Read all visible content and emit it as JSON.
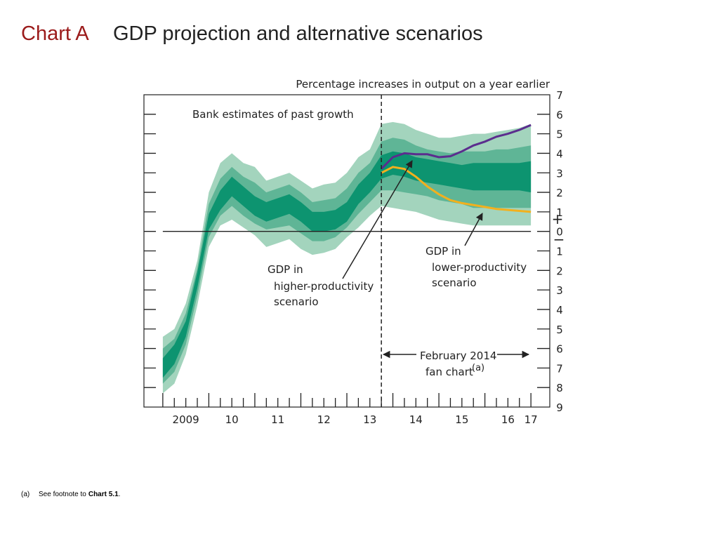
{
  "title_label": "Chart A",
  "title": "GDP projection and alternative scenarios",
  "chart_data": {
    "type": "fan",
    "unit_label": "Percentage increases in output on a year earlier",
    "x": [
      2009.0,
      2009.25,
      2009.5,
      2009.75,
      2010.0,
      2010.25,
      2010.5,
      2010.75,
      2011.0,
      2011.25,
      2011.5,
      2011.75,
      2012.0,
      2012.25,
      2012.5,
      2012.75,
      2013.0,
      2013.25,
      2013.5,
      2013.75,
      2014.0,
      2014.25,
      2014.5,
      2014.75,
      2015.0,
      2015.25,
      2015.5,
      2015.75,
      2016.0,
      2016.25,
      2016.5,
      2016.75,
      2017.0
    ],
    "xlim": [
      2008.59,
      2017.41
    ],
    "xticks": [
      {
        "value": 2009.5,
        "label": "2009"
      },
      {
        "value": 2010.5,
        "label": "10"
      },
      {
        "value": 2011.5,
        "label": "11"
      },
      {
        "value": 2012.5,
        "label": "12"
      },
      {
        "value": 2013.5,
        "label": "13"
      },
      {
        "value": 2014.5,
        "label": "14"
      },
      {
        "value": 2015.5,
        "label": "15"
      },
      {
        "value": 2016.5,
        "label": "16"
      },
      {
        "value": 2017.0,
        "label": "17"
      }
    ],
    "ylim": [
      -9,
      7
    ],
    "yticks": [
      7,
      6,
      5,
      4,
      3,
      2,
      1,
      0,
      {
        "value": -1,
        "label": "1"
      },
      {
        "value": -2,
        "label": "2"
      },
      {
        "value": -3,
        "label": "3"
      },
      {
        "value": -4,
        "label": "4"
      },
      {
        "value": -5,
        "label": "5"
      },
      {
        "value": -6,
        "label": "6"
      },
      {
        "value": -7,
        "label": "7"
      },
      {
        "value": -8,
        "label": "8"
      },
      {
        "value": -9,
        "label": "9"
      }
    ],
    "sign_labels": [
      "+",
      "−"
    ],
    "forecast_start": 2013.75,
    "bands": [
      {
        "color": "#a3d4bd",
        "upper": [
          -5.4,
          -5.0,
          -3.7,
          -1.5,
          2.0,
          3.5,
          4.0,
          3.5,
          3.3,
          2.6,
          2.8,
          3.0,
          2.6,
          2.2,
          2.4,
          2.5,
          3.0,
          3.8,
          4.2,
          5.5,
          5.6,
          5.5,
          5.2,
          5.0,
          4.8,
          4.8,
          4.9,
          5.0,
          5.0,
          5.1,
          5.2,
          5.3,
          5.5
        ],
        "lower": [
          -8.3,
          -7.8,
          -6.3,
          -3.8,
          -0.8,
          0.3,
          0.6,
          0.2,
          -0.2,
          -0.8,
          -0.6,
          -0.4,
          -0.9,
          -1.2,
          -1.1,
          -0.9,
          -0.3,
          0.2,
          0.8,
          1.3,
          1.2,
          1.1,
          1.0,
          0.8,
          0.6,
          0.5,
          0.4,
          0.3,
          0.3,
          0.3,
          0.3,
          0.3,
          0.3
        ]
      },
      {
        "color": "#5fb596",
        "upper": [
          -6.0,
          -5.5,
          -4.2,
          -1.9,
          1.4,
          2.7,
          3.3,
          2.8,
          2.5,
          2.0,
          2.2,
          2.4,
          2.0,
          1.5,
          1.6,
          1.7,
          2.2,
          3.0,
          3.5,
          4.6,
          4.8,
          4.7,
          4.4,
          4.2,
          4.1,
          4.0,
          4.1,
          4.1,
          4.1,
          4.2,
          4.2,
          4.3,
          4.4
        ],
        "lower": [
          -7.8,
          -7.2,
          -5.8,
          -3.3,
          -0.3,
          0.8,
          1.3,
          0.8,
          0.4,
          0.1,
          0.2,
          0.3,
          -0.1,
          -0.5,
          -0.5,
          -0.3,
          0.2,
          0.9,
          1.5,
          2.1,
          2.1,
          2.0,
          1.9,
          1.8,
          1.6,
          1.5,
          1.4,
          1.2,
          1.2,
          1.2,
          1.2,
          1.2,
          1.2
        ]
      },
      {
        "color": "#0d9470",
        "upper": [
          -6.5,
          -5.8,
          -4.6,
          -2.1,
          0.9,
          2.1,
          2.8,
          2.3,
          1.8,
          1.5,
          1.7,
          1.9,
          1.5,
          1.0,
          1.0,
          1.1,
          1.5,
          2.4,
          3.0,
          3.9,
          4.1,
          4.0,
          3.8,
          3.7,
          3.6,
          3.5,
          3.4,
          3.5,
          3.5,
          3.5,
          3.5,
          3.5,
          3.6
        ],
        "lower": [
          -7.5,
          -6.8,
          -5.4,
          -2.9,
          0.1,
          1.1,
          1.8,
          1.3,
          0.8,
          0.5,
          0.7,
          0.9,
          0.5,
          0.0,
          0.0,
          0.1,
          0.5,
          1.4,
          2.0,
          2.7,
          2.9,
          2.8,
          2.6,
          2.5,
          2.4,
          2.3,
          2.2,
          2.1,
          2.1,
          2.1,
          2.1,
          2.1,
          2.0
        ]
      }
    ],
    "series": [
      {
        "color": "#5b2d8e",
        "values": [
          null,
          null,
          null,
          null,
          null,
          null,
          null,
          null,
          null,
          null,
          null,
          null,
          null,
          null,
          null,
          null,
          null,
          null,
          null,
          3.2,
          3.8,
          4.0,
          3.95,
          3.95,
          3.8,
          3.85,
          4.1,
          4.4,
          4.6,
          4.85,
          5.0,
          5.2,
          5.45
        ]
      },
      {
        "color": "#f2b01e",
        "values": [
          null,
          null,
          null,
          null,
          null,
          null,
          null,
          null,
          null,
          null,
          null,
          null,
          null,
          null,
          null,
          null,
          null,
          null,
          null,
          3.0,
          3.3,
          3.2,
          2.8,
          2.3,
          1.9,
          1.6,
          1.45,
          1.35,
          1.25,
          1.15,
          1.1,
          1.05,
          1.0
        ]
      }
    ],
    "annotations": {
      "past": "Bank estimates of past growth",
      "higher": [
        "GDP in",
        "higher-productivity",
        "scenario"
      ],
      "lower": [
        "GDP in",
        "lower-productivity",
        "scenario"
      ],
      "fan": [
        "February 2014",
        "fan chart"
      ],
      "fan_note": "(a)"
    }
  },
  "footnote": {
    "marker": "(a)",
    "text": "See footnote to",
    "ref": "Chart 5.1",
    "end": "."
  }
}
